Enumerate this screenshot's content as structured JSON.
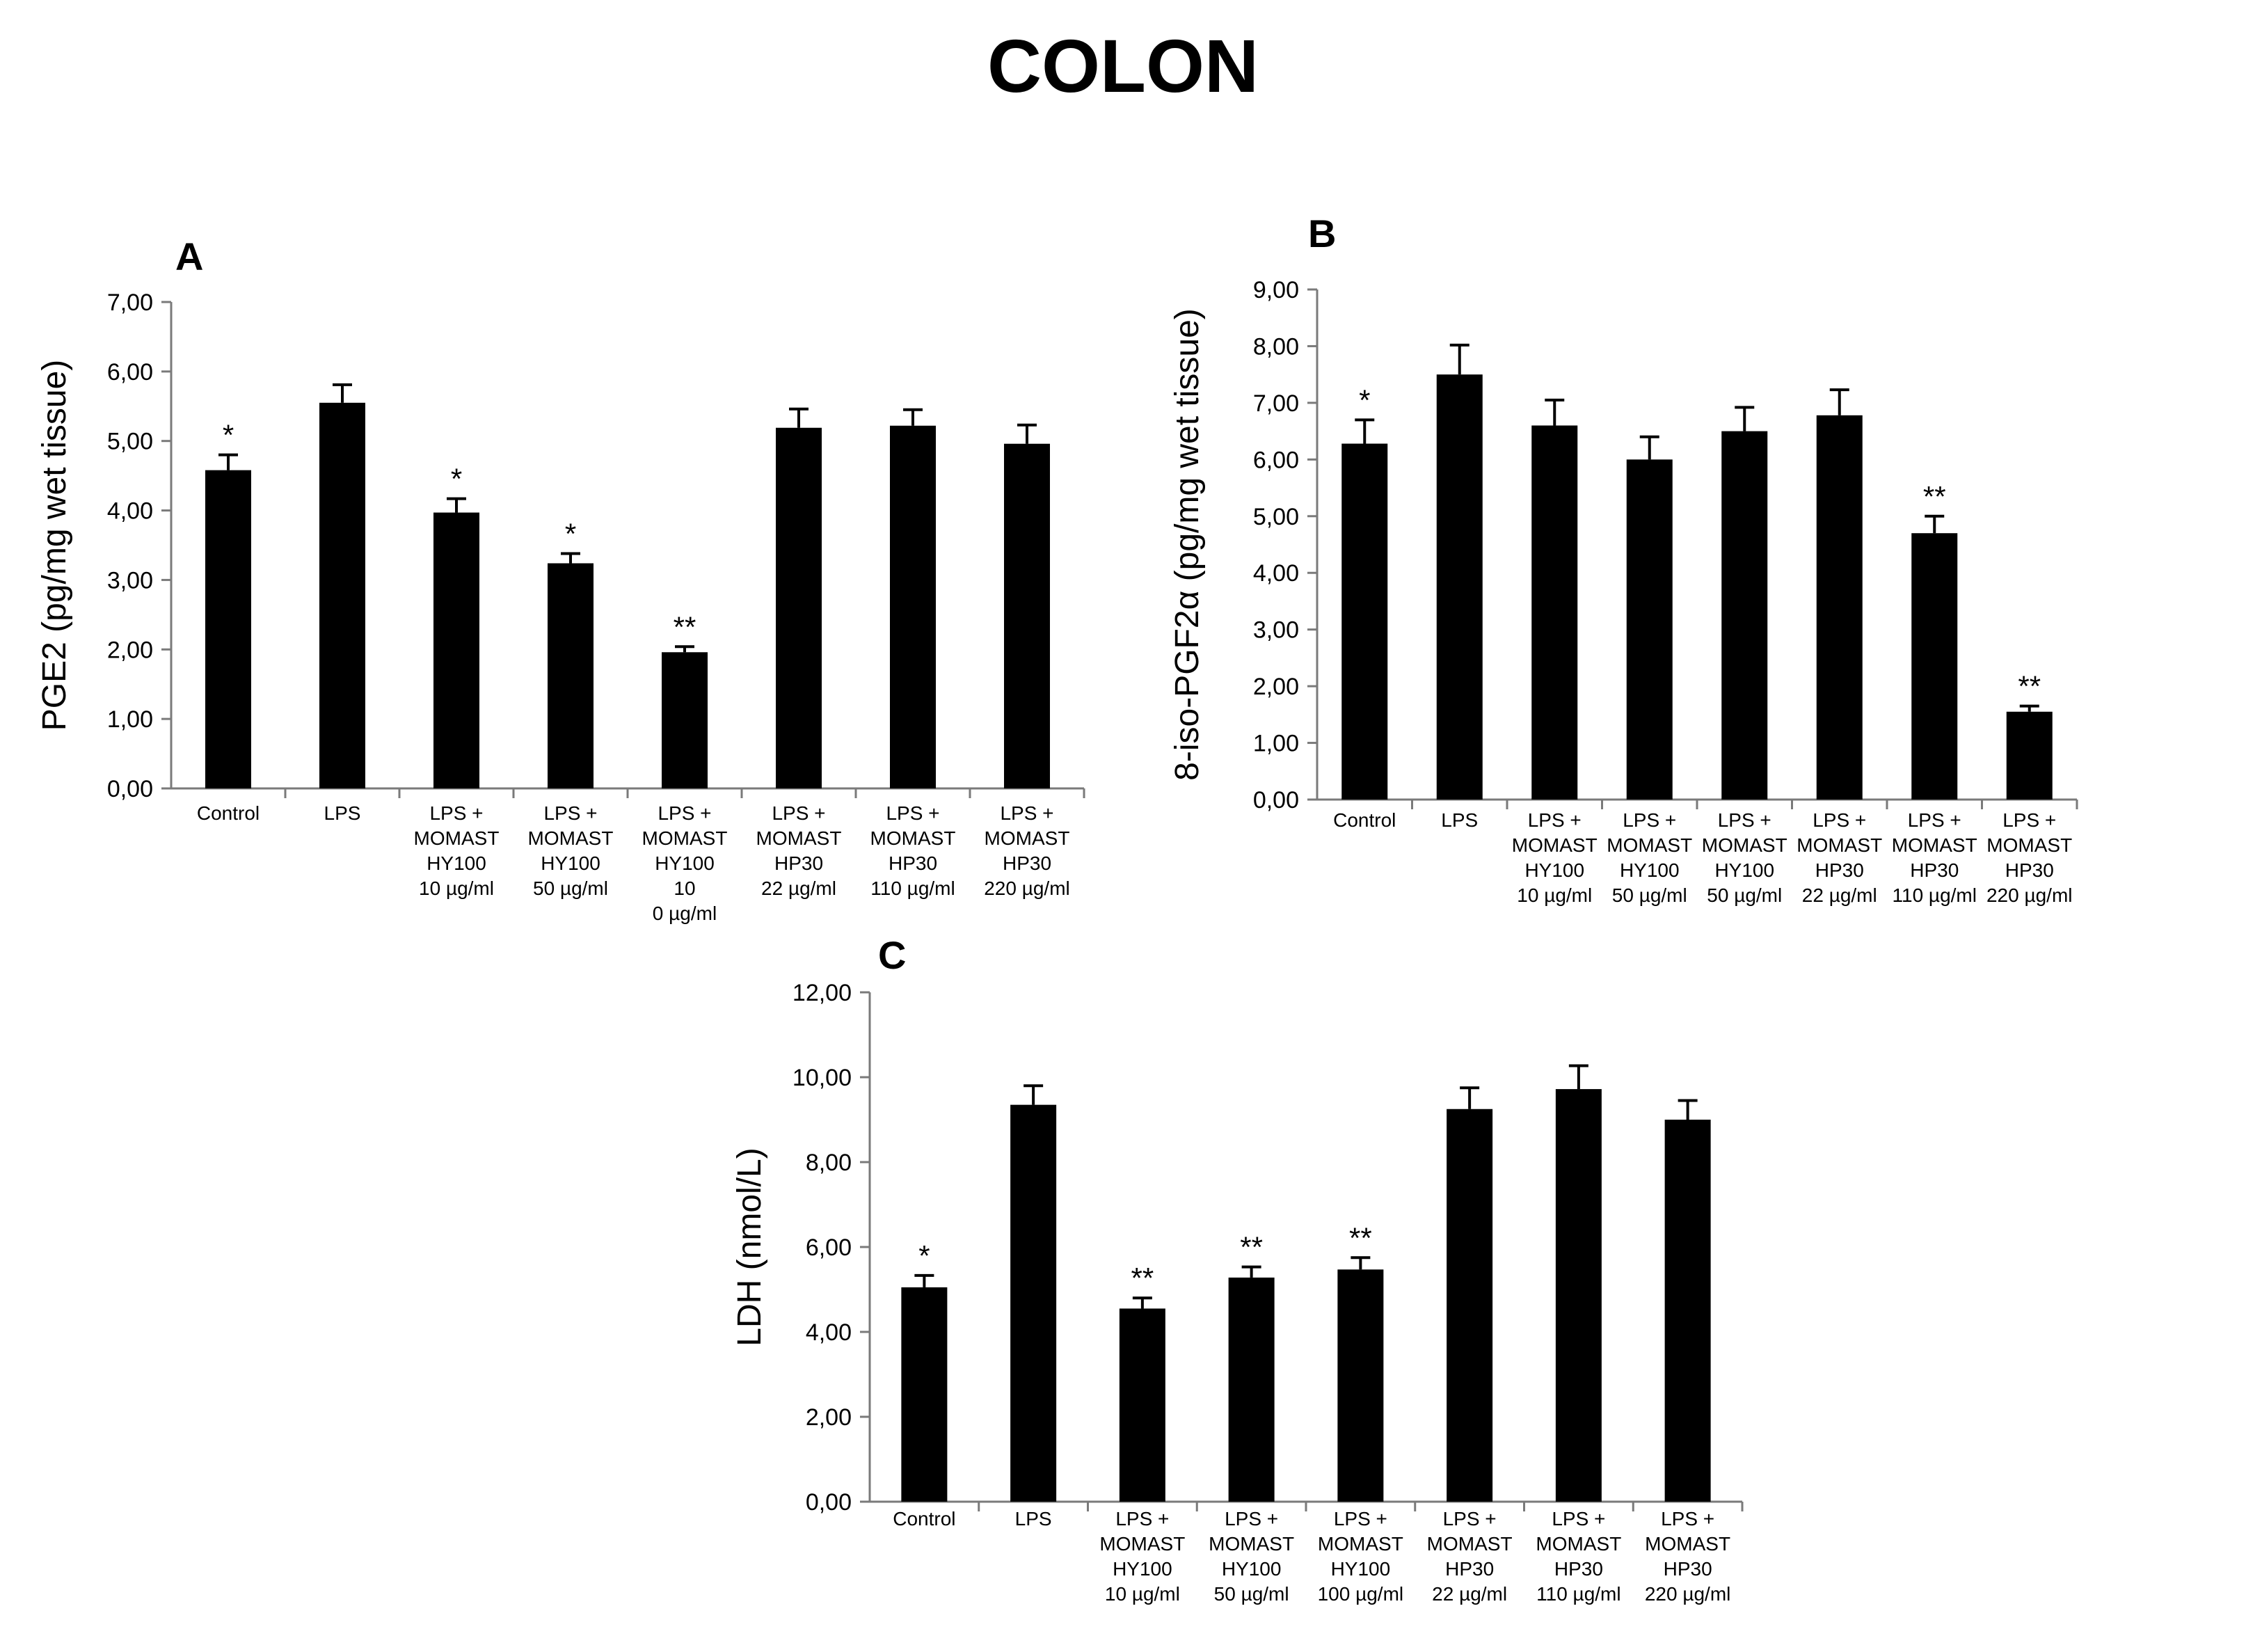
{
  "figure": {
    "title": "COLON"
  },
  "chart_data": [
    {
      "type": "bar",
      "panel": "A",
      "ylabel": "PGE2 (pg/mg wet tissue)",
      "ylim": [
        0,
        7
      ],
      "yticks": [
        "0,00",
        "1,00",
        "2,00",
        "3,00",
        "4,00",
        "5,00",
        "6,00",
        "7,00"
      ],
      "grid": false,
      "bar_color": "#000000",
      "categories": [
        [
          "Control"
        ],
        [
          "LPS"
        ],
        [
          "LPS +",
          "MOMAST",
          "HY100",
          "10 µg/ml"
        ],
        [
          "LPS +",
          "MOMAST",
          "HY100",
          "50 µg/ml"
        ],
        [
          "LPS +",
          "MOMAST",
          "HY100",
          "10",
          "0 µg/ml"
        ],
        [
          "LPS +",
          "MOMAST",
          "HP30",
          "22 µg/ml"
        ],
        [
          "LPS +",
          "MOMAST",
          "HP30",
          "110 µg/ml"
        ],
        [
          "LPS +",
          "MOMAST",
          "HP30",
          "220 µg/ml"
        ]
      ],
      "values": [
        4.58,
        5.55,
        3.97,
        3.24,
        1.96,
        5.19,
        5.22,
        4.96
      ],
      "errors": [
        0.22,
        0.26,
        0.2,
        0.14,
        0.08,
        0.27,
        0.23,
        0.27
      ],
      "significance": [
        "*",
        "",
        "*",
        "*",
        "**",
        "",
        "",
        ""
      ]
    },
    {
      "type": "bar",
      "panel": "B",
      "ylabel": "8-iso-PGF2α (pg/mg wet tissue)",
      "ylim": [
        0,
        9
      ],
      "yticks": [
        "0,00",
        "1,00",
        "2,00",
        "3,00",
        "4,00",
        "5,00",
        "6,00",
        "7,00",
        "8,00",
        "9,00"
      ],
      "grid": false,
      "bar_color": "#000000",
      "categories": [
        [
          "Control"
        ],
        [
          "LPS"
        ],
        [
          "LPS +",
          "MOMAST",
          "HY100",
          "10 µg/ml"
        ],
        [
          "LPS +",
          "MOMAST",
          "HY100",
          "50 µg/ml"
        ],
        [
          "LPS +",
          "MOMAST",
          "HY100",
          "50 µg/ml"
        ],
        [
          "LPS +",
          "MOMAST",
          "HP30",
          "22 µg/ml"
        ],
        [
          "LPS +",
          "MOMAST",
          "HP30",
          "110 µg/ml"
        ],
        [
          "LPS +",
          "MOMAST",
          "HP30",
          "220 µg/ml"
        ]
      ],
      "values": [
        6.28,
        7.5,
        6.6,
        6.0,
        6.5,
        6.78,
        4.7,
        1.55
      ],
      "errors": [
        0.42,
        0.52,
        0.45,
        0.4,
        0.42,
        0.45,
        0.3,
        0.1
      ],
      "significance": [
        "*",
        "",
        "",
        "",
        "",
        "",
        "**",
        "**"
      ]
    },
    {
      "type": "bar",
      "panel": "C",
      "ylabel": "LDH (nmol/L)",
      "ylim": [
        0,
        12
      ],
      "yticks": [
        "0,00",
        "2,00",
        "4,00",
        "6,00",
        "8,00",
        "10,00",
        "12,00"
      ],
      "grid": false,
      "bar_color": "#000000",
      "categories": [
        [
          "Control"
        ],
        [
          "LPS"
        ],
        [
          "LPS +",
          "MOMAST",
          "HY100",
          "10 µg/ml"
        ],
        [
          "LPS +",
          "MOMAST",
          "HY100",
          "50 µg/ml"
        ],
        [
          "LPS +",
          "MOMAST",
          "HY100",
          "100 µg/ml"
        ],
        [
          "LPS +",
          "MOMAST",
          "HP30",
          "22 µg/ml"
        ],
        [
          "LPS +",
          "MOMAST",
          "HP30",
          "110 µg/ml"
        ],
        [
          "LPS +",
          "MOMAST",
          "HP30",
          "220 µg/ml"
        ]
      ],
      "values": [
        5.05,
        9.35,
        4.55,
        5.28,
        5.47,
        9.25,
        9.72,
        9.0
      ],
      "errors": [
        0.28,
        0.45,
        0.25,
        0.25,
        0.28,
        0.5,
        0.55,
        0.45
      ],
      "significance": [
        "*",
        "",
        "**",
        "**",
        "**",
        "",
        "",
        ""
      ]
    }
  ]
}
